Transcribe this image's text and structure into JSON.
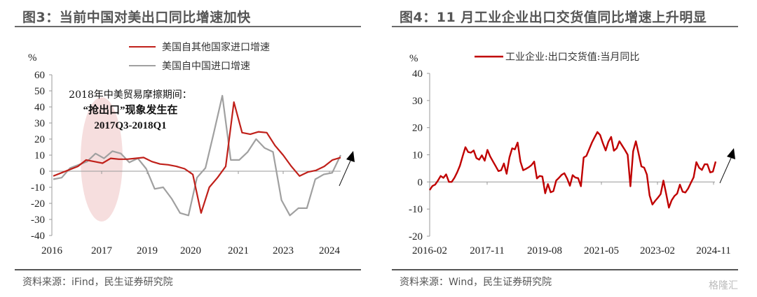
{
  "chart_data": [
    {
      "type": "line",
      "title": "图3：当前中国对美出口同比增速加快",
      "ylabel": "%",
      "ylim": [
        -40,
        60
      ],
      "yticks": [
        "60",
        "50",
        "40",
        "30",
        "20",
        "10",
        "0",
        "-10",
        "-20",
        "-30",
        "-40"
      ],
      "xtick_labels": [
        "2016",
        "2017",
        "2019",
        "2020",
        "2021",
        "2023",
        "2024"
      ],
      "source": "资料来源：iFind，民生证券研究院",
      "annotation": {
        "line1": "2018年中美贸易摩擦期间：",
        "line2": "“抢出口”现象发生在",
        "line3": "2017Q3-2018Q1"
      },
      "series": [
        {
          "name": "美国自其他国家进口增速",
          "color": "#c0201a",
          "values": [
            -3,
            -1,
            1,
            3,
            7,
            6,
            5,
            8,
            7.5,
            7.5,
            8,
            8.5,
            6,
            4.5,
            4,
            3,
            1.5,
            -2,
            -26,
            -10,
            -4,
            3,
            43,
            24,
            23,
            24.5,
            24,
            16,
            10,
            3,
            -3,
            -0.5,
            0.5,
            3,
            7,
            8.5
          ]
        },
        {
          "name": "美国自中国进口增速",
          "color": "#a0a0a0",
          "values": [
            -5,
            -4,
            2,
            4,
            6,
            11,
            8,
            12.5,
            11,
            5.5,
            8,
            1.5,
            -11,
            -10,
            -17,
            -26,
            -27.5,
            -4,
            2,
            24,
            47,
            7,
            7,
            12,
            20,
            14.5,
            12,
            -18,
            -27.5,
            -23,
            -23,
            -5,
            -2,
            -1,
            10
          ]
        }
      ]
    },
    {
      "type": "line",
      "title": "图4：11 月工业企业出口交货值同比增速上升明显",
      "ylabel": "%",
      "ylim": [
        -20,
        40
      ],
      "yticks": [
        "40",
        "30",
        "20",
        "10",
        "0",
        "-10",
        "-20"
      ],
      "xtick_labels": [
        "2016-02",
        "2017-11",
        "2019-08",
        "2021-05",
        "2023-02",
        "2024-11"
      ],
      "source": "资料来源：Wind，民生证券研究院",
      "series": [
        {
          "name": "工业企业:出口交货值:当月同比",
          "color": "#c00000",
          "values": [
            -3,
            -1.5,
            -1,
            0.5,
            2.2,
            1.5,
            2.8,
            0,
            0,
            1.5,
            3.5,
            6,
            9.5,
            12.8,
            11,
            10.8,
            11.6,
            8.8,
            8.2,
            9.8,
            7.8,
            11.8,
            9.4,
            7.6,
            5.8,
            4,
            4.3,
            6.8,
            3,
            9,
            12.4,
            12,
            14.5,
            7.5,
            4.3,
            4.8,
            5.4,
            6.2,
            7.5,
            1.3,
            2.2,
            2,
            -4.2,
            -0.8,
            -3.8,
            -3.4,
            0.5,
            1.5,
            2.6,
            3.2,
            1.2,
            -1.4,
            2.5,
            1.6,
            1.4,
            -1.6,
            9,
            9.6,
            12,
            14.5,
            16.5,
            18.4,
            17.3,
            14.2,
            11.6,
            14.8,
            16.6,
            11.5,
            12.4,
            15,
            13.4,
            11.8,
            10,
            -1.6,
            11.3,
            15,
            10.3,
            5.7,
            5.3,
            2.7,
            -5,
            -8.3,
            -7,
            -5.8,
            -4.5,
            0.5,
            -4.4,
            -9.5,
            -6.8,
            -5.2,
            -4.3,
            -1,
            -3.6,
            -3.9,
            -2.4,
            -0.3,
            1.7,
            7.3,
            5.2,
            4.4,
            6.5,
            6.5,
            3.5,
            3.8,
            7.5
          ]
        }
      ]
    }
  ],
  "watermark": "格隆汇"
}
